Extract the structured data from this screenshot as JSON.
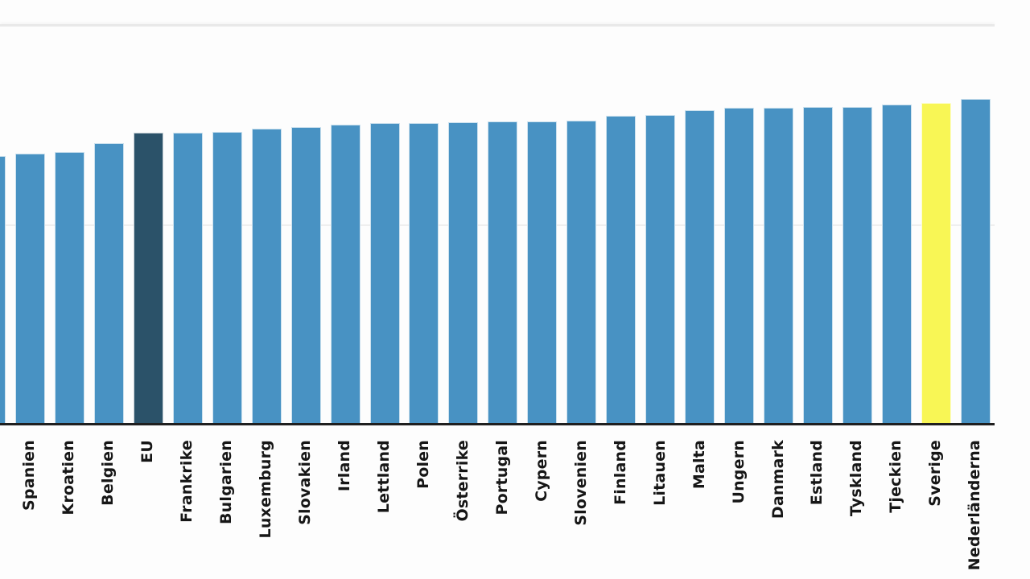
{
  "chart": {
    "background": "#fdfdfd",
    "axis_color": "#1f1f1f",
    "gridline_color": "#efefef",
    "label_color": "#161616"
  },
  "chart_data": {
    "type": "bar",
    "orientation": "vertical",
    "title": "",
    "xlabel": "",
    "ylabel": "",
    "legend": "none",
    "axis_tick_labels_visible": false,
    "grid": "horizontal",
    "gridlines_y": [
      50,
      100
    ],
    "ylim": [
      0,
      107
    ],
    "values_estimated_from_pixels": true,
    "categories": [
      "",
      "Spanien",
      "Kroatien",
      "Belgien",
      "EU",
      "Frankrike",
      "Bulgarien",
      "Luxemburg",
      "Slovakien",
      "Irland",
      "Lettland",
      "Polen",
      "Österrike",
      "Portugal",
      "Cypern",
      "Slovenien",
      "Finland",
      "Litauen",
      "Malta",
      "Ungern",
      "Danmark",
      "Estland",
      "Tyskland",
      "Tjeckien",
      "Sverige",
      "Nederländerna"
    ],
    "values": [
      67.3,
      67.9,
      68.3,
      70.6,
      73.2,
      73.2,
      73.4,
      74.2,
      74.6,
      75.2,
      75.6,
      75.6,
      75.8,
      76.0,
      76.0,
      76.2,
      77.4,
      77.6,
      78.8,
      79.4,
      79.4,
      79.6,
      79.6,
      80.2,
      80.6,
      81.7
    ],
    "color_keys": [
      "default",
      "default",
      "default",
      "default",
      "dark",
      "default",
      "default",
      "default",
      "default",
      "default",
      "default",
      "default",
      "default",
      "default",
      "default",
      "default",
      "default",
      "default",
      "default",
      "default",
      "default",
      "default",
      "default",
      "default",
      "yellow",
      "default"
    ],
    "colors": {
      "default": "#4892c3",
      "dark": "#2b5269",
      "yellow": "#f8f655"
    },
    "highlighted": {
      "dark": "EU",
      "yellow": "Sverige"
    }
  }
}
